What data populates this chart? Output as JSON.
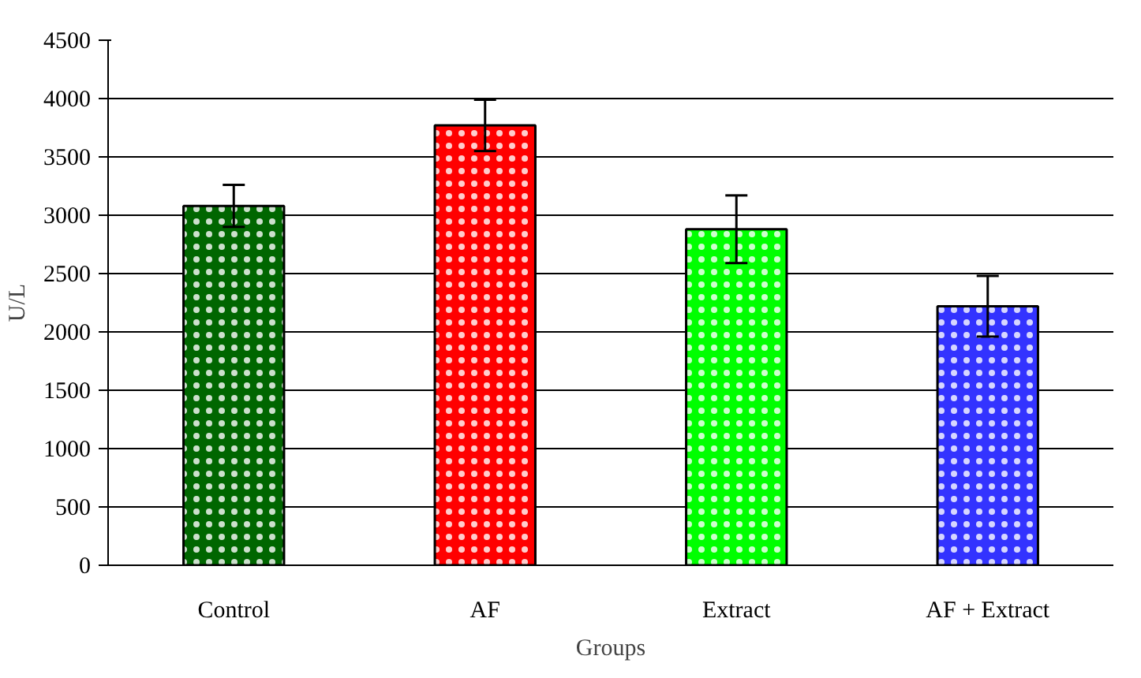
{
  "chart_data": {
    "type": "bar",
    "xlabel": "Groups",
    "ylabel": "U/L",
    "categories": [
      "Control",
      "AF",
      "Extract",
      "AF + Extract"
    ],
    "values": [
      3080,
      3770,
      2880,
      2220
    ],
    "errors": [
      180,
      220,
      290,
      260
    ],
    "colors": [
      "#006600",
      "#ff0000",
      "#00ff00",
      "#3333ff"
    ],
    "ylim": [
      0,
      4500
    ],
    "yticks": [
      0,
      500,
      1000,
      1500,
      2000,
      2500,
      3000,
      3500,
      4000,
      4500
    ],
    "grid": "y"
  }
}
